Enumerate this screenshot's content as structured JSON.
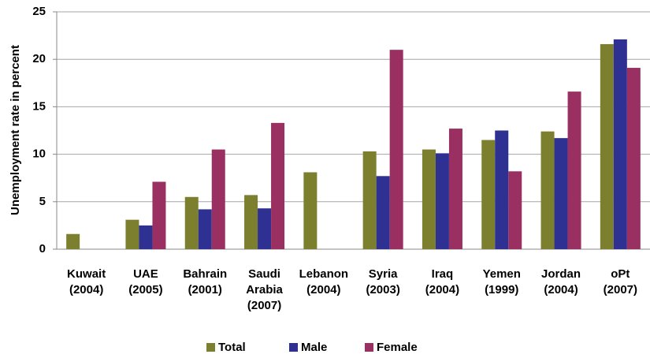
{
  "chart_data": {
    "type": "bar",
    "y_label": "Unemployment rate in percent",
    "categories": [
      "Kuwait\n(2004)",
      "UAE\n(2005)",
      "Bahrain\n(2001)",
      "Saudi\nArabia\n(2007)",
      "Lebanon\n(2004)",
      "Syria\n(2003)",
      "Iraq\n(2004)",
      "Yemen\n(1999)",
      "Jordan\n(2004)",
      "oPt\n(2007)"
    ],
    "series": [
      {
        "name": "Total",
        "color": "#7b7f2e",
        "values": [
          1.6,
          3.1,
          5.5,
          5.7,
          8.1,
          10.3,
          10.5,
          11.5,
          12.4,
          21.6
        ]
      },
      {
        "name": "Male",
        "color": "#2e3192",
        "values": [
          null,
          2.5,
          4.2,
          4.3,
          null,
          7.7,
          10.1,
          12.5,
          11.7,
          22.1
        ]
      },
      {
        "name": "Female",
        "color": "#9a3061",
        "values": [
          null,
          7.1,
          10.5,
          13.3,
          null,
          21.0,
          12.7,
          8.2,
          16.6,
          19.1
        ]
      }
    ],
    "ylim": [
      0,
      25
    ],
    "yticks": [
      0,
      5,
      10,
      15,
      20,
      25
    ],
    "grid": true,
    "legend": "bottom"
  }
}
